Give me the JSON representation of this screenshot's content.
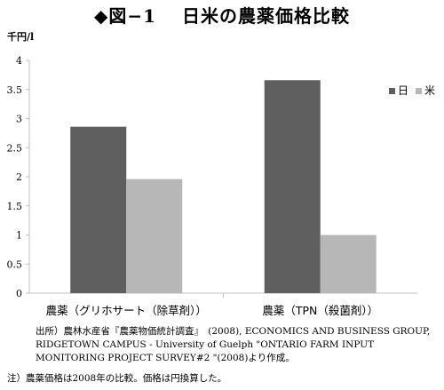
{
  "title": "◆図−1　 日米の農薬価格比較",
  "unit_label": "千円/l",
  "source_text": "出所）農林水産省『農薬物価統計調査』　(2008), ECONOMICS AND BUSINESS GROUP, RIDGETOWN CAMPUS - University of Guelph \"ONTARIO FARM INPUT MONITORING PROJECT SURVEY#2 \"(2008)より作成。",
  "note_text": "注）農薬価格は2008年の比較。価格は円換算した。",
  "colors": {
    "japan": "#5f5f5f",
    "us": "#b7b7b7",
    "axis": "#c0c0c0"
  },
  "chart_data": {
    "type": "bar",
    "title": "日米の農薬価格比較",
    "ylabel": "千円/l",
    "categories": [
      "農薬（グリホサート（除草剤））",
      "農薬（TPN（殺菌剤））"
    ],
    "series": [
      {
        "name": "日",
        "values": [
          2.86,
          3.66
        ]
      },
      {
        "name": "米",
        "values": [
          1.96,
          1.0
        ]
      }
    ],
    "ylim": [
      0,
      4
    ],
    "yticks": [
      "0",
      "0.5",
      "1",
      "1.5",
      "2",
      "2.5",
      "3",
      "3.5",
      "4"
    ],
    "grid": false,
    "legend": "right"
  }
}
